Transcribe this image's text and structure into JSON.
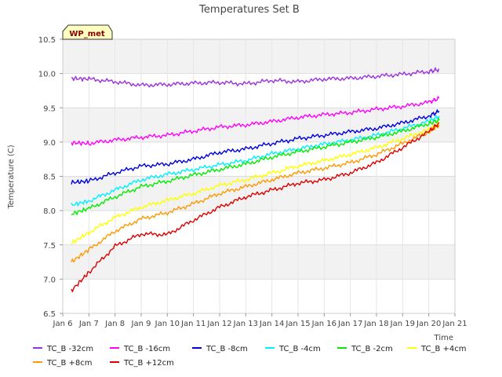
{
  "chart_data": {
    "type": "line",
    "title": "Temperatures Set B",
    "xlabel": "Time",
    "ylabel": "Temperature (C)",
    "site_badge": "WP_met",
    "xlim": [
      6,
      21
    ],
    "ylim": [
      6.5,
      10.5
    ],
    "x_ticks": [
      6,
      7,
      8,
      9,
      10,
      11,
      12,
      13,
      14,
      15,
      16,
      17,
      18,
      19,
      20,
      21
    ],
    "x_tick_labels": [
      "Jan 6",
      "Jan 7",
      "Jan 8",
      "Jan 9",
      "Jan 10",
      "Jan 11",
      "Jan 12",
      "Jan 13",
      "Jan 14",
      "Jan 15",
      "Jan 16",
      "Jan 17",
      "Jan 18",
      "Jan 19",
      "Jan 20",
      "Jan 21"
    ],
    "y_ticks": [
      6.5,
      7.0,
      7.5,
      8.0,
      8.5,
      9.0,
      9.5,
      10.0,
      10.5
    ],
    "y_tick_labels": [
      "6.5",
      "7.0",
      "7.5",
      "8.0",
      "8.5",
      "9.0",
      "9.5",
      "10.0",
      "10.5"
    ],
    "grid": true,
    "legend_position": "bottom",
    "x": [
      6.33,
      7,
      8,
      9,
      10,
      11,
      12,
      13,
      14,
      15,
      16,
      17,
      18,
      19,
      20,
      20.4
    ],
    "series": [
      {
        "name": "TC_B -32cm",
        "color": "#9b30e0",
        "values": [
          9.93,
          9.92,
          9.88,
          9.83,
          9.84,
          9.86,
          9.87,
          9.85,
          9.9,
          9.88,
          9.92,
          9.93,
          9.96,
          9.99,
          10.03,
          10.06
        ]
      },
      {
        "name": "TC_B -16cm",
        "color": "#ff00ff",
        "values": [
          8.99,
          8.98,
          9.03,
          9.07,
          9.1,
          9.16,
          9.22,
          9.25,
          9.3,
          9.36,
          9.4,
          9.43,
          9.48,
          9.52,
          9.58,
          9.64
        ]
      },
      {
        "name": "TC_B -8cm",
        "color": "#0000dd",
        "values": [
          8.41,
          8.43,
          8.55,
          8.65,
          8.68,
          8.75,
          8.85,
          8.9,
          8.98,
          9.05,
          9.1,
          9.15,
          9.2,
          9.28,
          9.38,
          9.45
        ]
      },
      {
        "name": "TC_B -4cm",
        "color": "#00f0ff",
        "values": [
          8.08,
          8.14,
          8.3,
          8.45,
          8.53,
          8.6,
          8.67,
          8.73,
          8.83,
          8.9,
          8.97,
          9.03,
          9.1,
          9.2,
          9.3,
          9.38
        ]
      },
      {
        "name": "TC_B -2cm",
        "color": "#00ee00",
        "values": [
          7.95,
          8.03,
          8.2,
          8.35,
          8.43,
          8.52,
          8.6,
          8.68,
          8.78,
          8.86,
          8.93,
          9.0,
          9.07,
          9.16,
          9.27,
          9.32
        ]
      },
      {
        "name": "TC_B +4cm",
        "color": "#ffff00",
        "values": [
          7.52,
          7.68,
          7.9,
          8.05,
          8.15,
          8.25,
          8.37,
          8.45,
          8.55,
          8.65,
          8.73,
          8.82,
          8.92,
          9.05,
          9.18,
          9.27
        ]
      },
      {
        "name": "TC_B +8cm",
        "color": "#ff9900",
        "values": [
          7.25,
          7.43,
          7.7,
          7.88,
          7.97,
          8.1,
          8.25,
          8.35,
          8.45,
          8.55,
          8.62,
          8.7,
          8.82,
          8.98,
          9.15,
          9.25
        ]
      },
      {
        "name": "TC_B +12cm",
        "color": "#dd0000",
        "values": [
          6.83,
          7.1,
          7.48,
          7.66,
          7.65,
          7.86,
          8.05,
          8.2,
          8.3,
          8.4,
          8.45,
          8.55,
          8.7,
          8.92,
          9.15,
          9.28
        ]
      }
    ]
  }
}
